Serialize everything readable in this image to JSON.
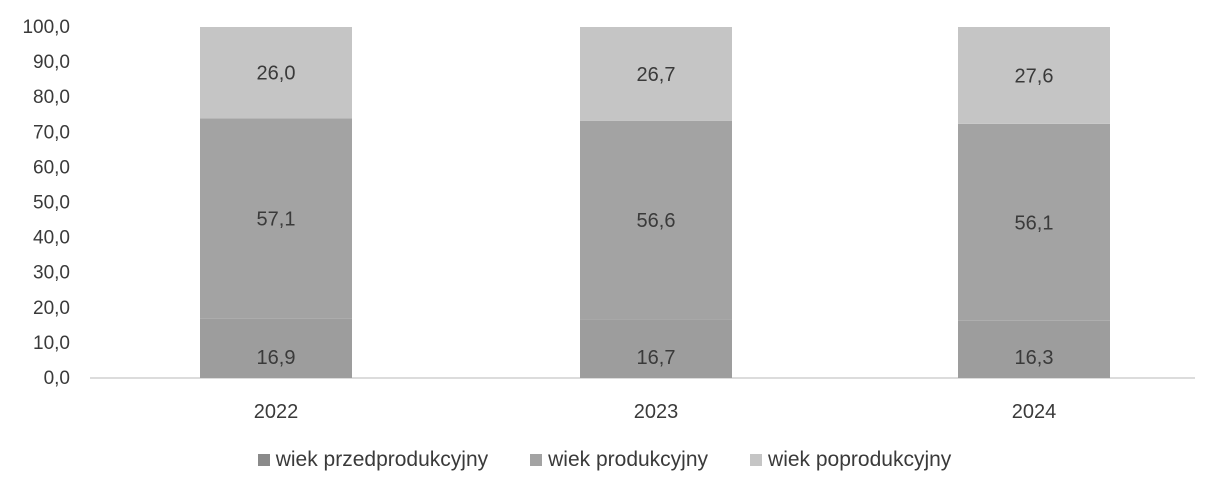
{
  "chart_data": {
    "type": "bar",
    "stacked": true,
    "categories": [
      "2022",
      "2023",
      "2024"
    ],
    "series": [
      {
        "name": "wiek przedprodukcyjny",
        "values": [
          16.9,
          16.7,
          16.3
        ],
        "labels": [
          "16,9",
          "16,7",
          "16,3"
        ],
        "color": "#9d9d9d"
      },
      {
        "name": "wiek produkcyjny",
        "values": [
          57.1,
          56.6,
          56.1
        ],
        "labels": [
          "57,1",
          "56,6",
          "56,1"
        ],
        "color": "#a3a3a3"
      },
      {
        "name": "wiek poprodukcyjny",
        "values": [
          26.0,
          26.7,
          27.6
        ],
        "labels": [
          "26,0",
          "26,7",
          "27,6"
        ],
        "color": "#c5c5c5"
      }
    ],
    "yticks": [
      "0,0",
      "10,0",
      "20,0",
      "30,0",
      "40,0",
      "50,0",
      "60,0",
      "70,0",
      "80,0",
      "90,0",
      "100,0"
    ],
    "ylim": [
      0,
      100
    ],
    "grid": false,
    "legend_position": "bottom"
  }
}
